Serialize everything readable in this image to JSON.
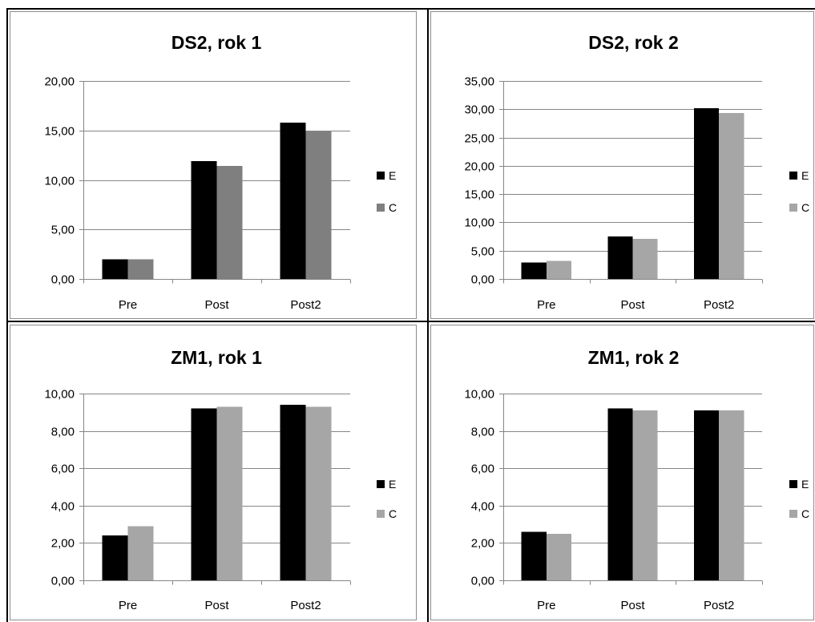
{
  "chart_data": [
    {
      "type": "bar",
      "title": "DS2, rok 1",
      "categories": [
        "Pre",
        "Post",
        "Post2"
      ],
      "series": [
        {
          "name": "E",
          "values": [
            2.0,
            11.9,
            15.8
          ],
          "color": "#000000"
        },
        {
          "name": "C",
          "values": [
            2.0,
            11.4,
            14.9
          ],
          "color": "#7f7f7f"
        }
      ],
      "ylim": [
        0,
        20
      ],
      "yticks": [
        0,
        5,
        10,
        15,
        20
      ],
      "ytick_labels": [
        "0,00",
        "5,00",
        "10,00",
        "15,00",
        "20,00"
      ],
      "grid": true,
      "legend": "right"
    },
    {
      "type": "bar",
      "title": "DS2, rok 2",
      "categories": [
        "Pre",
        "Post",
        "Post2"
      ],
      "series": [
        {
          "name": "E",
          "values": [
            2.9,
            7.5,
            30.2
          ],
          "color": "#000000"
        },
        {
          "name": "C",
          "values": [
            3.2,
            7.1,
            29.3
          ],
          "color": "#a6a6a6"
        }
      ],
      "ylim": [
        0,
        35
      ],
      "yticks": [
        0,
        5,
        10,
        15,
        20,
        25,
        30,
        35
      ],
      "ytick_labels": [
        "0,00",
        "5,00",
        "10,00",
        "15,00",
        "20,00",
        "25,00",
        "30,00",
        "35,00"
      ],
      "grid": true,
      "legend": "right"
    },
    {
      "type": "bar",
      "title": "ZM1, rok 1",
      "categories": [
        "Pre",
        "Post",
        "Post2"
      ],
      "series": [
        {
          "name": "E",
          "values": [
            2.4,
            9.2,
            9.4
          ],
          "color": "#000000"
        },
        {
          "name": "C",
          "values": [
            2.9,
            9.3,
            9.3
          ],
          "color": "#a6a6a6"
        }
      ],
      "ylim": [
        0,
        10
      ],
      "yticks": [
        0,
        2,
        4,
        6,
        8,
        10
      ],
      "ytick_labels": [
        "0,00",
        "2,00",
        "4,00",
        "6,00",
        "8,00",
        "10,00"
      ],
      "grid": true,
      "legend": "right"
    },
    {
      "type": "bar",
      "title": "ZM1, rok 2",
      "categories": [
        "Pre",
        "Post",
        "Post2"
      ],
      "series": [
        {
          "name": "E",
          "values": [
            2.6,
            9.2,
            9.1
          ],
          "color": "#000000"
        },
        {
          "name": "C",
          "values": [
            2.5,
            9.1,
            9.1
          ],
          "color": "#a6a6a6"
        }
      ],
      "ylim": [
        0,
        10
      ],
      "yticks": [
        0,
        2,
        4,
        6,
        8,
        10
      ],
      "ytick_labels": [
        "0,00",
        "2,00",
        "4,00",
        "6,00",
        "8,00",
        "10,00"
      ],
      "grid": true,
      "legend": "right"
    }
  ]
}
